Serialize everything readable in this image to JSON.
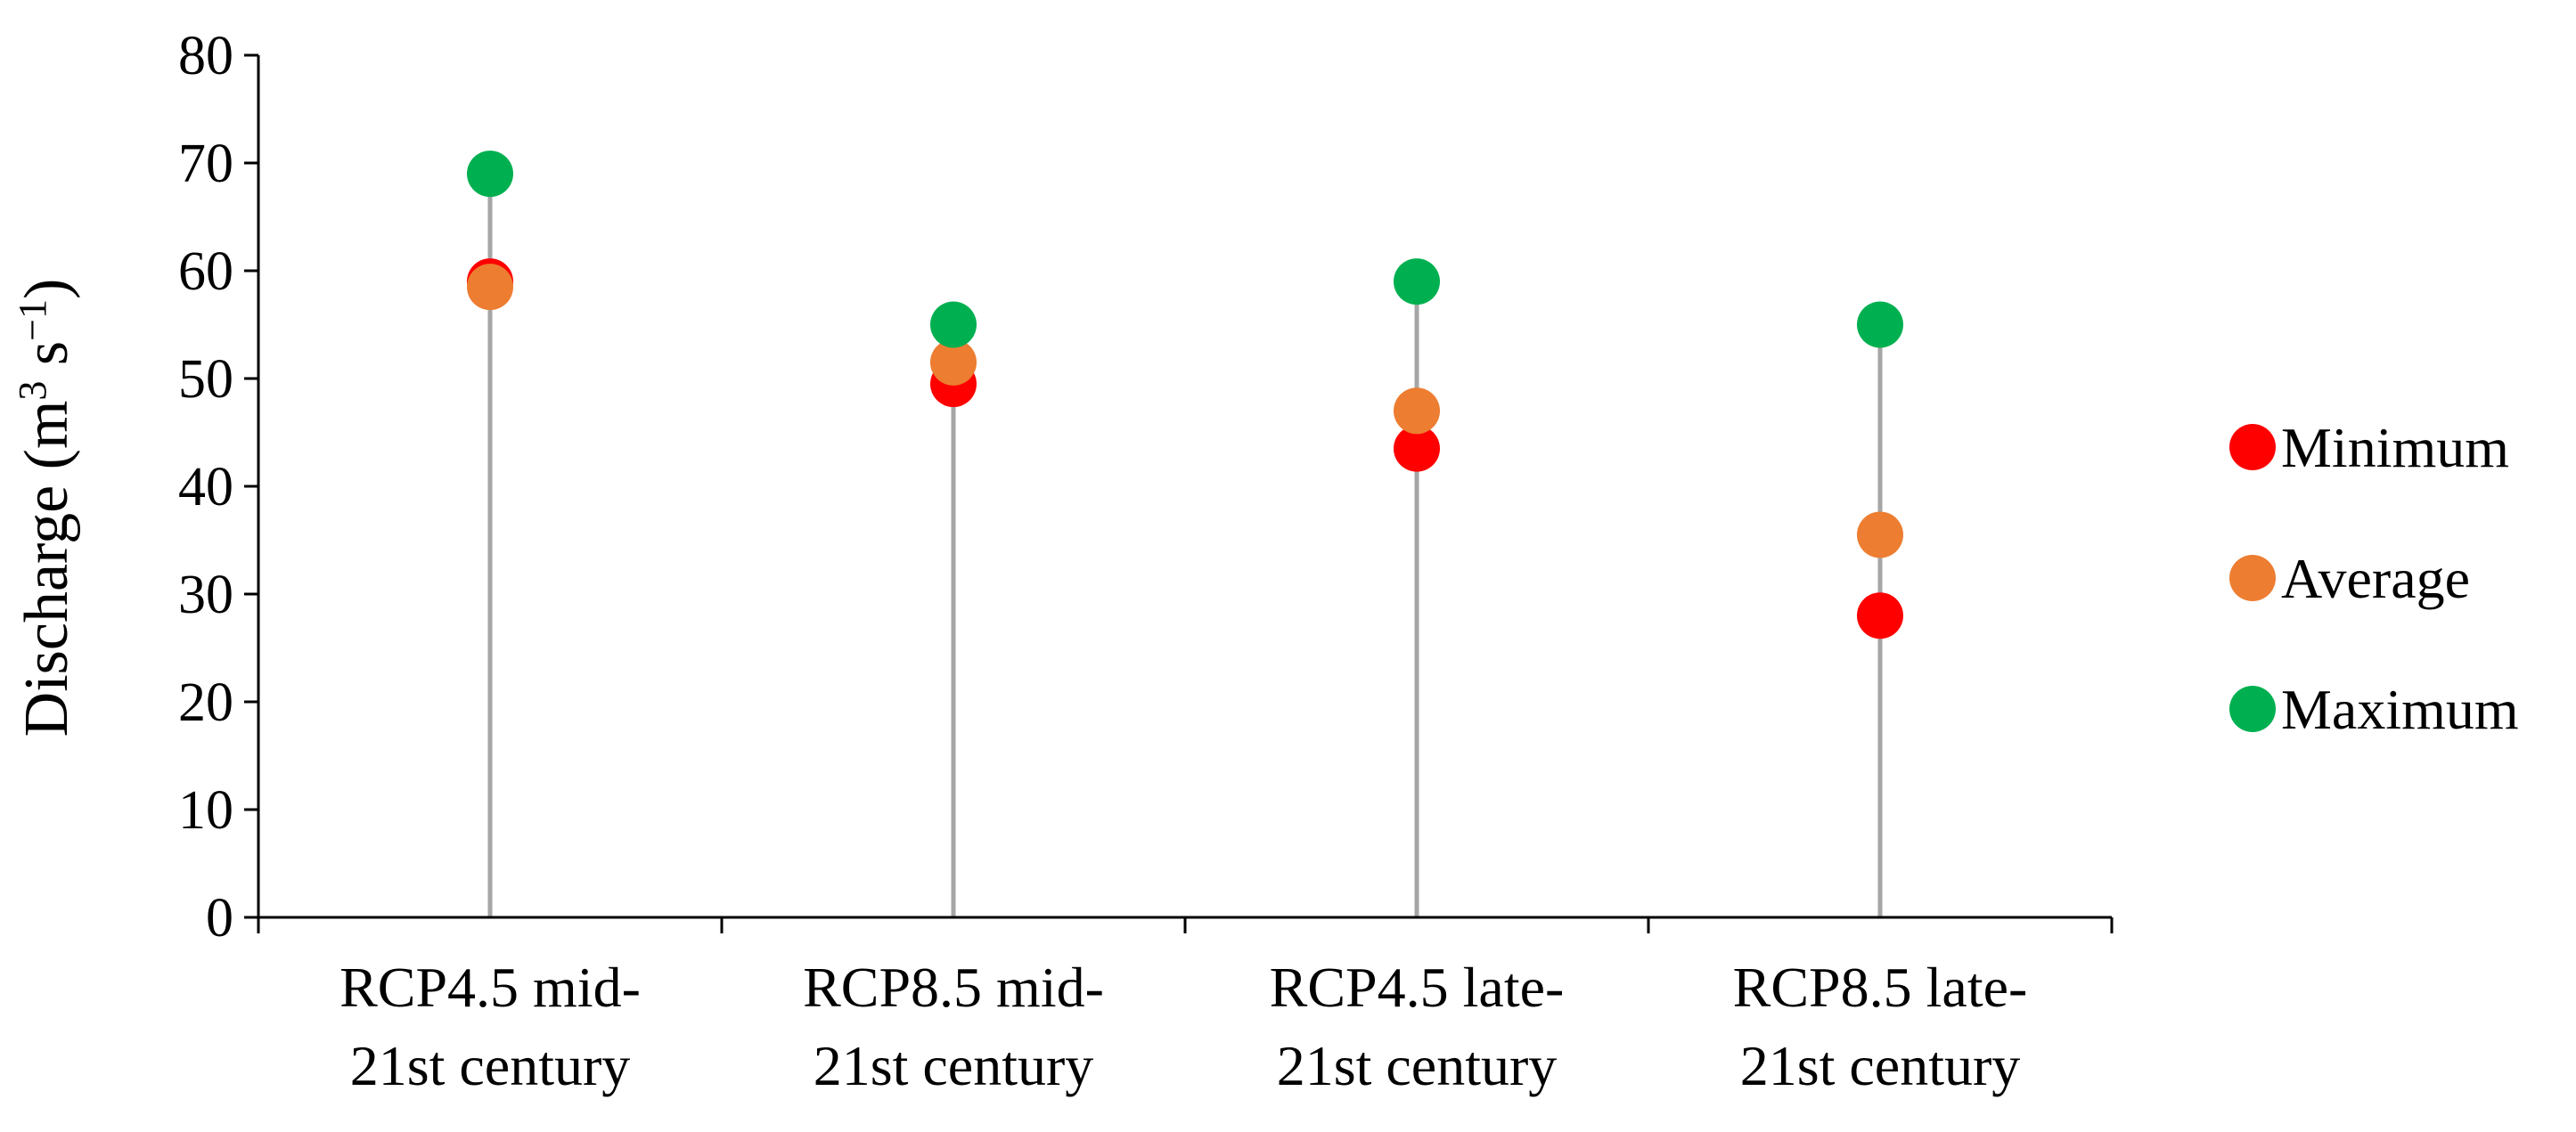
{
  "chart_data": {
    "type": "scatter",
    "ylabel": {
      "prefix": "Discharge (m",
      "sup1": "3",
      "middle": " s",
      "sup2": "−1",
      "suffix": ")"
    },
    "ylim": [
      0,
      80
    ],
    "yticks": [
      "0",
      "10",
      "20",
      "30",
      "40",
      "50",
      "60",
      "70",
      "80"
    ],
    "categories": [
      [
        "RCP4.5 mid-",
        "21st century"
      ],
      [
        "RCP8.5 mid-",
        "21st century"
      ],
      [
        "RCP4.5 late-",
        "21st century"
      ],
      [
        "RCP8.5 late-",
        "21st century"
      ]
    ],
    "series": [
      {
        "name": "Minimum",
        "color": "#ff0000",
        "values": [
          59.0,
          49.5,
          43.5,
          28.0
        ]
      },
      {
        "name": "Average",
        "color": "#ed7d31",
        "values": [
          58.5,
          51.5,
          47.0,
          35.5
        ]
      },
      {
        "name": "Maximum",
        "color": "#00b050",
        "values": [
          69.0,
          55.0,
          59.0,
          55.0
        ]
      }
    ],
    "stem_color": "#a6a6a6",
    "grid": false,
    "legend_position": "right"
  }
}
